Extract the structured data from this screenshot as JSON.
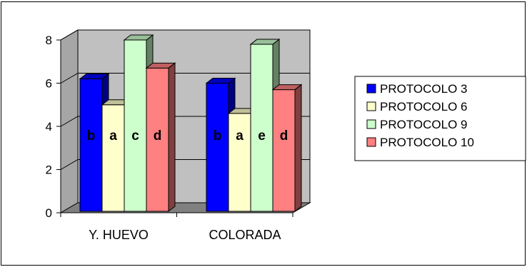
{
  "chart_data": {
    "type": "bar",
    "style": "3d-clustered-column",
    "categories": [
      "Y. HUEVO",
      "COLORADA"
    ],
    "series": [
      {
        "name": "PROTOCOLO 3",
        "values": [
          6.2,
          6.0
        ],
        "labels": [
          "b",
          "b"
        ],
        "color": "#0000ff"
      },
      {
        "name": "PROTOCOLO 6",
        "values": [
          5.0,
          4.6
        ],
        "labels": [
          "a",
          "a"
        ],
        "color": "#ffffcc"
      },
      {
        "name": "PROTOCOLO 9",
        "values": [
          8.0,
          7.8
        ],
        "labels": [
          "c",
          "e"
        ],
        "color": "#ccffcc"
      },
      {
        "name": "PROTOCOLO 10",
        "values": [
          6.7,
          5.7
        ],
        "labels": [
          "d",
          "d"
        ],
        "color": "#ff8080"
      }
    ],
    "yticks": [
      0,
      2,
      4,
      6,
      8
    ],
    "ylim": [
      0,
      8
    ],
    "grid": true,
    "legend": "right",
    "wall_color": "#c0c0c0",
    "floor_color": "#808080"
  }
}
